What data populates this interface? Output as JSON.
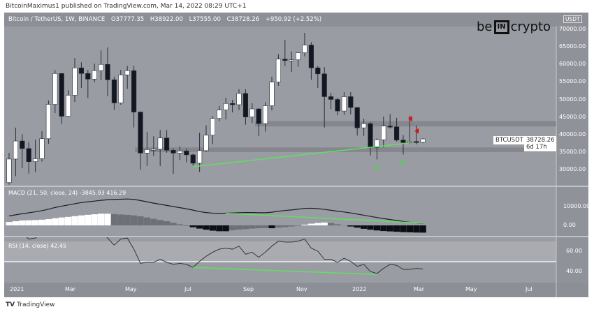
{
  "publisher": "BitcoinMaximus1 published on TradingView.com, Mar 14, 2022 08:29 UTC+1",
  "header": {
    "symbol": "Bitcoin / TetherUS, 1W, BINANCE",
    "open": "O37777.35",
    "high": "H38922.00",
    "low": "L37555.00",
    "close": "C38728.26",
    "change": "+950.92 (+2.52%)"
  },
  "logo": {
    "left": "be",
    "box": "IN",
    "right": "crypto"
  },
  "footer": "TradingView",
  "price_tag": {
    "symbol": "BTCUSDT",
    "price": "38728.26",
    "countdown": "6d 17h"
  },
  "colors": {
    "background": "#9a9ca3",
    "bull": "#ffffff",
    "bear": "#131722",
    "trendline": "#5fe05f",
    "marker_up": "#3ee03e",
    "marker_down": "#e01010"
  },
  "chart_data": {
    "type": "candlestick",
    "currency": "USDT",
    "price_ticks": [
      "70000.00",
      "65000.00",
      "60000.00",
      "55000.00",
      "50000.00",
      "45000.00",
      "40000.00",
      "35000.00",
      "30000.00"
    ],
    "time_ticks": [
      "2021",
      "Mar",
      "May",
      "Jul",
      "Sep",
      "Nov",
      "2022",
      "Mar",
      "May",
      "Jul"
    ],
    "ohlc": [
      [
        26272,
        34778,
        25700,
        33000
      ],
      [
        33000,
        41950,
        28130,
        38150
      ],
      [
        38150,
        40100,
        30420,
        36000
      ],
      [
        36000,
        37850,
        28850,
        32250
      ],
      [
        32250,
        38500,
        29240,
        33100
      ],
      [
        33100,
        40950,
        32300,
        38800
      ],
      [
        38800,
        49700,
        37350,
        48600
      ],
      [
        48600,
        58350,
        46100,
        57400
      ],
      [
        57400,
        57500,
        43000,
        45200
      ],
      [
        45200,
        52640,
        44950,
        51200
      ],
      [
        51200,
        61800,
        49300,
        59000
      ],
      [
        59000,
        60600,
        53300,
        57400
      ],
      [
        57400,
        58400,
        50400,
        55800
      ],
      [
        55800,
        60200,
        54900,
        58200
      ],
      [
        58200,
        64000,
        55500,
        60000
      ],
      [
        60000,
        64850,
        51000,
        55600
      ],
      [
        55600,
        56500,
        47000,
        49000
      ],
      [
        49000,
        58400,
        48500,
        57000
      ],
      [
        57000,
        59500,
        53000,
        58200
      ],
      [
        58200,
        59600,
        42000,
        46400
      ],
      [
        46400,
        46600,
        30000,
        34700
      ],
      [
        34700,
        40800,
        31000,
        35700
      ],
      [
        35700,
        39500,
        33900,
        35800
      ],
      [
        35800,
        41300,
        31000,
        39000
      ],
      [
        39000,
        41300,
        34800,
        35500
      ],
      [
        35500,
        36000,
        28800,
        34700
      ],
      [
        34700,
        36600,
        32700,
        35300
      ],
      [
        35300,
        35950,
        32100,
        34200
      ],
      [
        34200,
        34600,
        31100,
        31800
      ],
      [
        31800,
        40500,
        29300,
        35400
      ],
      [
        35400,
        42600,
        35100,
        39800
      ],
      [
        39800,
        45300,
        37300,
        44600
      ],
      [
        44600,
        48150,
        43800,
        47000
      ],
      [
        47000,
        50500,
        44300,
        48850
      ],
      [
        48850,
        49900,
        46300,
        48500
      ],
      [
        48500,
        52900,
        47000,
        51700
      ],
      [
        51700,
        52900,
        42800,
        45000
      ],
      [
        45000,
        48900,
        43300,
        47300
      ],
      [
        47300,
        47500,
        39600,
        43100
      ],
      [
        43100,
        49200,
        40800,
        48200
      ],
      [
        48200,
        56500,
        46900,
        54950
      ],
      [
        54950,
        62900,
        53900,
        61500
      ],
      [
        61500,
        67000,
        59500,
        61100
      ],
      [
        61100,
        63700,
        57800,
        61300
      ],
      [
        61300,
        63000,
        59300,
        63300
      ],
      [
        63300,
        69000,
        62300,
        65500
      ],
      [
        65500,
        66300,
        55600,
        59000
      ],
      [
        59000,
        59500,
        53300,
        57300
      ],
      [
        57300,
        59200,
        42000,
        50800
      ],
      [
        50800,
        51900,
        47300,
        50000
      ],
      [
        50000,
        50500,
        45500,
        46700
      ],
      [
        46700,
        52100,
        45600,
        50800
      ],
      [
        50800,
        52100,
        45700,
        47700
      ],
      [
        47700,
        47600,
        39700,
        41900
      ],
      [
        41900,
        44500,
        39600,
        43100
      ],
      [
        43100,
        43500,
        34000,
        36300
      ],
      [
        36300,
        38900,
        32900,
        38500
      ],
      [
        38500,
        45100,
        36300,
        42400
      ],
      [
        42400,
        45800,
        41700,
        42200
      ],
      [
        42200,
        44750,
        38000,
        38400
      ],
      [
        38400,
        39850,
        34300,
        37700
      ],
      [
        37700,
        45400,
        37300,
        38000
      ],
      [
        38000,
        42600,
        37200,
        37800
      ],
      [
        37777.35,
        38922,
        37555,
        38728.26
      ]
    ],
    "zones": [
      [
        42300,
        43800
      ],
      [
        35000,
        36300
      ]
    ],
    "trendline": [
      [
        28,
        30800
      ],
      [
        61,
        37600
      ]
    ],
    "markers_up": [
      56,
      60
    ],
    "markers_down": [
      [
        62,
        44500
      ],
      [
        63,
        41000
      ]
    ],
    "macd": {
      "label": "MACD (21, 50, close, 24)",
      "value1": "-3845.93",
      "value2": "416.29",
      "ticks": [
        "10000.00",
        "0.00"
      ],
      "line": [
        5000,
        5600,
        6200,
        6700,
        7200,
        7800,
        8600,
        9500,
        10200,
        10800,
        11500,
        12100,
        12500,
        12900,
        13300,
        13600,
        13800,
        13900,
        14000,
        13800,
        13200,
        12500,
        11800,
        11200,
        10600,
        10000,
        9400,
        8800,
        8100,
        7300,
        6800,
        6500,
        6400,
        6500,
        6600,
        6700,
        6800,
        6800,
        6700,
        6700,
        7000,
        7500,
        7900,
        8200,
        8600,
        9000,
        9100,
        8900,
        8500,
        8000,
        7500,
        7100,
        6600,
        6000,
        5400,
        4800,
        4200,
        3600,
        3100,
        2600,
        2100,
        1700,
        1300,
        1000
      ],
      "hist": [
        1800,
        2200,
        2600,
        2700,
        2800,
        3000,
        3300,
        3800,
        4200,
        4500,
        4900,
        5300,
        5600,
        5900,
        6200,
        6200,
        6000,
        5800,
        5600,
        5300,
        4800,
        4200,
        3500,
        2900,
        2200,
        1400,
        600,
        -300,
        -1000,
        -1700,
        -2300,
        -2800,
        -3100,
        -3100,
        -2600,
        -2200,
        -2000,
        -1700,
        -1500,
        -1400,
        -1500,
        -1200,
        -900,
        -600,
        -200,
        400,
        900,
        1300,
        1500,
        1300,
        600,
        -100,
        -600,
        -1200,
        -1800,
        -2300,
        -2700,
        -3000,
        -3200,
        -3400,
        -3600,
        -3700,
        -3800,
        -3850
      ],
      "trendline": [
        [
          33,
          6400
        ],
        [
          63,
          1200
        ]
      ]
    },
    "rsi": {
      "label": "RSI (14, close)",
      "value": "42.45",
      "ticks": [
        "60.00",
        "40.00"
      ],
      "values": [
        80,
        85,
        78,
        72,
        73,
        78,
        85,
        88,
        75,
        78,
        82,
        80,
        77,
        79,
        80,
        73,
        66,
        72,
        73,
        62,
        48,
        49,
        49,
        52,
        49,
        47,
        48,
        47,
        44,
        50,
        55,
        59,
        62,
        63,
        62,
        65,
        57,
        59,
        54,
        59,
        65,
        70,
        69,
        69,
        70,
        72,
        63,
        60,
        52,
        52,
        49,
        53,
        50,
        45,
        47,
        40,
        38,
        43,
        47,
        46,
        42,
        42,
        43,
        42.45
      ],
      "trendline": [
        [
          28,
          44
        ],
        [
          56,
          37
        ]
      ]
    }
  }
}
